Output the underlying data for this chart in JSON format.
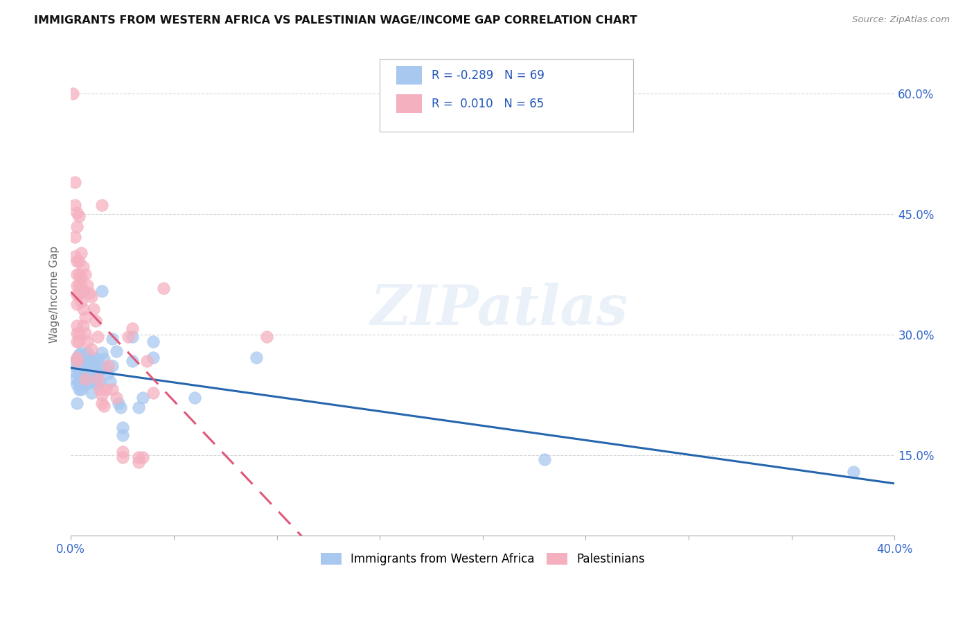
{
  "title": "IMMIGRANTS FROM WESTERN AFRICA VS PALESTINIAN WAGE/INCOME GAP CORRELATION CHART",
  "source": "Source: ZipAtlas.com",
  "ylabel": "Wage/Income Gap",
  "r_blue": -0.289,
  "n_blue": 69,
  "r_pink": 0.01,
  "n_pink": 65,
  "legend_label_blue": "Immigrants from Western Africa",
  "legend_label_pink": "Palestinians",
  "blue_color": "#A8C8F0",
  "pink_color": "#F5B0C0",
  "blue_line_color": "#2566AE",
  "pink_line_color": "#E05878",
  "watermark": "ZIPatlas",
  "blue_scatter": [
    [
      0.001,
      0.265
    ],
    [
      0.002,
      0.255
    ],
    [
      0.002,
      0.245
    ],
    [
      0.003,
      0.27
    ],
    [
      0.003,
      0.26
    ],
    [
      0.003,
      0.238
    ],
    [
      0.003,
      0.215
    ],
    [
      0.004,
      0.275
    ],
    [
      0.004,
      0.265
    ],
    [
      0.004,
      0.252
    ],
    [
      0.004,
      0.242
    ],
    [
      0.004,
      0.232
    ],
    [
      0.005,
      0.278
    ],
    [
      0.005,
      0.265
    ],
    [
      0.005,
      0.255
    ],
    [
      0.005,
      0.245
    ],
    [
      0.005,
      0.232
    ],
    [
      0.006,
      0.27
    ],
    [
      0.006,
      0.26
    ],
    [
      0.006,
      0.252
    ],
    [
      0.006,
      0.242
    ],
    [
      0.007,
      0.275
    ],
    [
      0.007,
      0.265
    ],
    [
      0.007,
      0.252
    ],
    [
      0.007,
      0.238
    ],
    [
      0.008,
      0.278
    ],
    [
      0.008,
      0.265
    ],
    [
      0.008,
      0.252
    ],
    [
      0.008,
      0.242
    ],
    [
      0.009,
      0.27
    ],
    [
      0.009,
      0.258
    ],
    [
      0.009,
      0.248
    ],
    [
      0.01,
      0.272
    ],
    [
      0.01,
      0.258
    ],
    [
      0.01,
      0.242
    ],
    [
      0.01,
      0.228
    ],
    [
      0.011,
      0.265
    ],
    [
      0.011,
      0.252
    ],
    [
      0.012,
      0.26
    ],
    [
      0.012,
      0.242
    ],
    [
      0.013,
      0.27
    ],
    [
      0.013,
      0.252
    ],
    [
      0.013,
      0.238
    ],
    [
      0.014,
      0.258
    ],
    [
      0.014,
      0.242
    ],
    [
      0.015,
      0.355
    ],
    [
      0.015,
      0.278
    ],
    [
      0.015,
      0.26
    ],
    [
      0.016,
      0.27
    ],
    [
      0.017,
      0.258
    ],
    [
      0.018,
      0.252
    ],
    [
      0.019,
      0.242
    ],
    [
      0.02,
      0.295
    ],
    [
      0.02,
      0.262
    ],
    [
      0.022,
      0.28
    ],
    [
      0.023,
      0.215
    ],
    [
      0.024,
      0.21
    ],
    [
      0.025,
      0.185
    ],
    [
      0.025,
      0.175
    ],
    [
      0.03,
      0.298
    ],
    [
      0.03,
      0.268
    ],
    [
      0.033,
      0.21
    ],
    [
      0.035,
      0.222
    ],
    [
      0.04,
      0.292
    ],
    [
      0.04,
      0.272
    ],
    [
      0.06,
      0.222
    ],
    [
      0.09,
      0.272
    ],
    [
      0.23,
      0.145
    ],
    [
      0.38,
      0.13
    ]
  ],
  "pink_scatter": [
    [
      0.001,
      0.6
    ],
    [
      0.002,
      0.49
    ],
    [
      0.002,
      0.462
    ],
    [
      0.002,
      0.422
    ],
    [
      0.002,
      0.398
    ],
    [
      0.003,
      0.452
    ],
    [
      0.003,
      0.435
    ],
    [
      0.003,
      0.392
    ],
    [
      0.003,
      0.375
    ],
    [
      0.003,
      0.362
    ],
    [
      0.003,
      0.35
    ],
    [
      0.003,
      0.338
    ],
    [
      0.003,
      0.312
    ],
    [
      0.003,
      0.302
    ],
    [
      0.003,
      0.292
    ],
    [
      0.003,
      0.272
    ],
    [
      0.003,
      0.268
    ],
    [
      0.004,
      0.448
    ],
    [
      0.004,
      0.392
    ],
    [
      0.004,
      0.375
    ],
    [
      0.004,
      0.362
    ],
    [
      0.004,
      0.35
    ],
    [
      0.004,
      0.302
    ],
    [
      0.004,
      0.292
    ],
    [
      0.005,
      0.402
    ],
    [
      0.005,
      0.372
    ],
    [
      0.005,
      0.362
    ],
    [
      0.005,
      0.342
    ],
    [
      0.006,
      0.385
    ],
    [
      0.006,
      0.355
    ],
    [
      0.006,
      0.332
    ],
    [
      0.006,
      0.312
    ],
    [
      0.007,
      0.375
    ],
    [
      0.007,
      0.322
    ],
    [
      0.007,
      0.302
    ],
    [
      0.007,
      0.245
    ],
    [
      0.008,
      0.362
    ],
    [
      0.008,
      0.292
    ],
    [
      0.009,
      0.352
    ],
    [
      0.01,
      0.348
    ],
    [
      0.01,
      0.282
    ],
    [
      0.011,
      0.332
    ],
    [
      0.012,
      0.318
    ],
    [
      0.013,
      0.298
    ],
    [
      0.013,
      0.245
    ],
    [
      0.014,
      0.232
    ],
    [
      0.015,
      0.462
    ],
    [
      0.015,
      0.225
    ],
    [
      0.015,
      0.215
    ],
    [
      0.016,
      0.212
    ],
    [
      0.017,
      0.232
    ],
    [
      0.018,
      0.262
    ],
    [
      0.02,
      0.232
    ],
    [
      0.022,
      0.222
    ],
    [
      0.025,
      0.155
    ],
    [
      0.025,
      0.148
    ],
    [
      0.028,
      0.298
    ],
    [
      0.03,
      0.308
    ],
    [
      0.033,
      0.148
    ],
    [
      0.033,
      0.142
    ],
    [
      0.035,
      0.148
    ],
    [
      0.037,
      0.268
    ],
    [
      0.04,
      0.228
    ],
    [
      0.045,
      0.358
    ],
    [
      0.095,
      0.298
    ]
  ],
  "xmin": 0.0,
  "xmax": 0.4,
  "ymin": 0.05,
  "ymax": 0.65,
  "xtick_positions": [
    0.0,
    0.05,
    0.1,
    0.15,
    0.2,
    0.25,
    0.3,
    0.35,
    0.4
  ],
  "ytick_vals": [
    0.15,
    0.3,
    0.45,
    0.6
  ]
}
